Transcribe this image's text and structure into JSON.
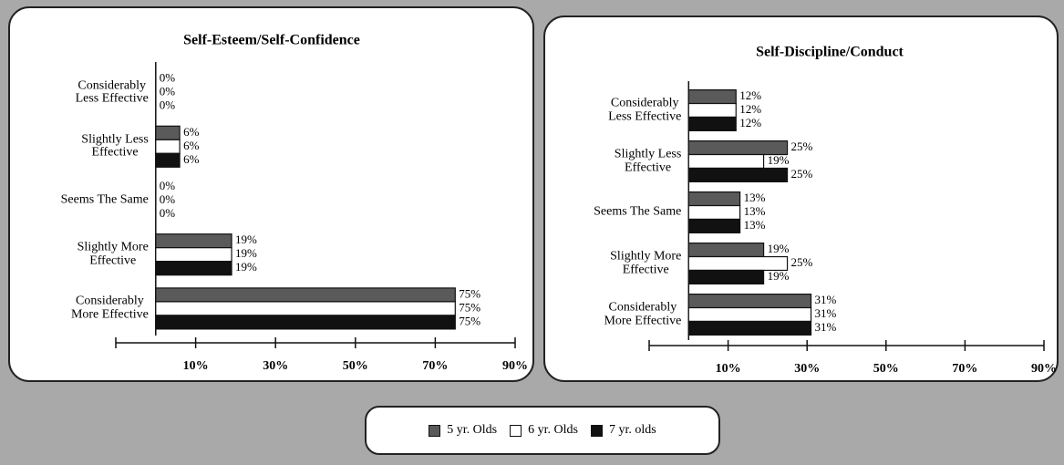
{
  "chart_data": [
    {
      "type": "hbar",
      "title": "Self-Esteem/Self-Confidence",
      "categories": [
        "Considerably\nLess Effective",
        "Slightly Less\nEffective",
        "Seems The Same",
        "Slightly More\nEffective",
        "Considerably\nMore Effective"
      ],
      "series": [
        {
          "name": "5 yr. Olds",
          "color": "#5a5a5a",
          "values": [
            0,
            6,
            0,
            19,
            75
          ],
          "value_labels": [
            "0%",
            "6%",
            "0%",
            "19%",
            "75%"
          ]
        },
        {
          "name": "6 yr. Olds",
          "color": "#ffffff",
          "values": [
            0,
            6,
            0,
            19,
            75
          ],
          "value_labels": [
            "0%",
            "6%",
            "0%",
            "19%",
            "75%"
          ]
        },
        {
          "name": "7 yr. olds",
          "color": "#111111",
          "values": [
            0,
            6,
            0,
            19,
            75
          ],
          "value_labels": [
            "0%",
            "6%",
            "0%",
            "19%",
            "75%"
          ]
        }
      ],
      "xlim": [
        -10,
        90
      ],
      "xticks": [
        {
          "value": 10,
          "label": "10%"
        },
        {
          "value": 30,
          "label": "30%"
        },
        {
          "value": 50,
          "label": "50%"
        },
        {
          "value": 70,
          "label": "70%"
        },
        {
          "value": 90,
          "label": "90%"
        }
      ]
    },
    {
      "type": "hbar",
      "title": "Self-Discipline/Conduct",
      "categories": [
        "Considerably\nLess Effective",
        "Slightly Less\nEffective",
        "Seems The Same",
        "Slightly More\nEffective",
        "Considerably\nMore Effective"
      ],
      "series": [
        {
          "color": "#5a5a5a",
          "values": [
            12,
            25,
            13,
            19,
            31
          ],
          "value_labels": [
            "12%",
            "25%",
            "13%",
            "19%",
            "31%"
          ]
        },
        {
          "color": "#ffffff",
          "values": [
            12,
            19,
            13,
            25,
            31
          ],
          "value_labels": [
            "12%",
            "19%",
            "13%",
            "25%",
            "31%"
          ]
        },
        {
          "color": "#111111",
          "values": [
            12,
            25,
            13,
            19,
            31
          ],
          "value_labels": [
            "12%",
            "25%",
            "13%",
            "19%",
            "31%"
          ]
        }
      ],
      "xlim": [
        -10,
        90
      ],
      "xticks": [
        {
          "value": 10,
          "label": "10%"
        },
        {
          "value": 30,
          "label": "30%"
        },
        {
          "value": 50,
          "label": "50%"
        },
        {
          "value": 70,
          "label": "70%"
        },
        {
          "value": 90,
          "label": "90%"
        }
      ]
    }
  ]
}
